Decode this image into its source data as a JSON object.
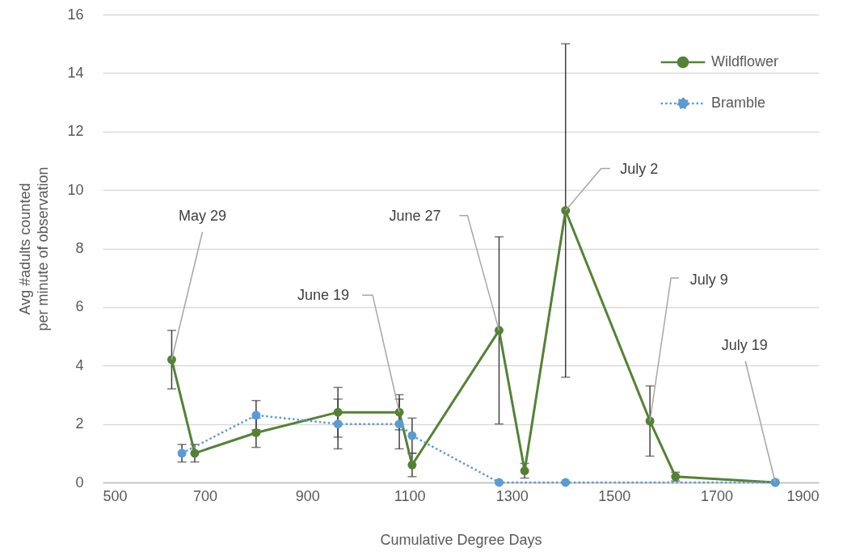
{
  "chart_data": {
    "type": "line",
    "xlabel": "Cumulative Degree Days",
    "ylabel": "Avg #adults counted\nper minute of observation",
    "xlim": [
      500,
      1900
    ],
    "xticks": [
      500,
      700,
      900,
      1100,
      1300,
      1500,
      1700,
      1900
    ],
    "ylim": [
      0,
      16
    ],
    "yticks": [
      0,
      2,
      4,
      6,
      8,
      10,
      12,
      14,
      16
    ],
    "grid": "y",
    "legend": "top right",
    "marker": "circle",
    "series": [
      {
        "name": "Wildflower",
        "color": "#548235",
        "line_style": "solid",
        "x": [
          635,
          680,
          800,
          960,
          1080,
          1105,
          1275,
          1325,
          1405,
          1570,
          1620,
          1815
        ],
        "values": [
          4.2,
          1.0,
          1.7,
          2.4,
          2.4,
          0.6,
          5.2,
          0.4,
          9.3,
          2.1,
          0.2,
          0
        ],
        "errors": [
          1.0,
          0.3,
          0.5,
          0.85,
          0.6,
          0.4,
          3.2,
          0.25,
          5.7,
          1.2,
          0.15,
          null
        ]
      },
      {
        "name": "Bramble",
        "color": "#5b9bd5",
        "line_style": "dotted",
        "x": [
          655,
          800,
          960,
          1080,
          1105,
          1275,
          1405,
          1815
        ],
        "values": [
          1.0,
          2.3,
          2.0,
          2.0,
          1.6,
          0,
          0,
          0
        ],
        "errors": [
          0.3,
          0.5,
          0.85,
          0.85,
          0.6,
          null,
          null,
          null
        ]
      }
    ],
    "annotations": [
      {
        "text": "May 29",
        "x": 635,
        "y": 4.2
      },
      {
        "text": "June 19",
        "x": 1080,
        "y": 2.4
      },
      {
        "text": "June 27",
        "x": 1275,
        "y": 5.2
      },
      {
        "text": "July 2",
        "x": 1405,
        "y": 9.3
      },
      {
        "text": "July 9",
        "x": 1570,
        "y": 2.1
      },
      {
        "text": "July 19",
        "x": 1815,
        "y": 0
      }
    ]
  }
}
